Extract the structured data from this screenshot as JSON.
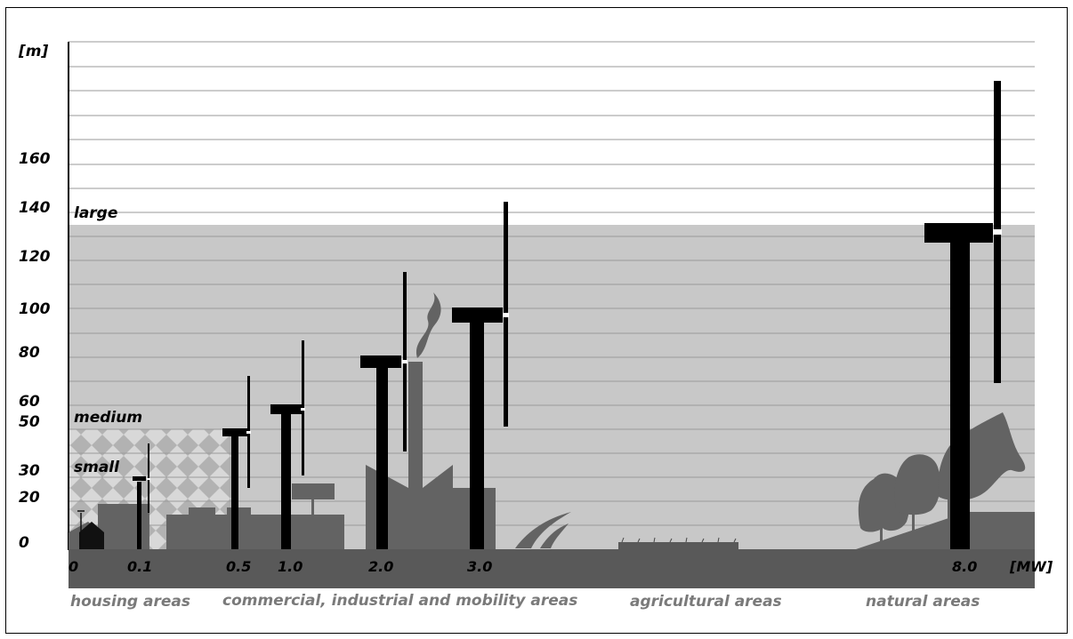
{
  "y_axis": {
    "unit": "[m]",
    "ticks": [
      "0",
      "20",
      "30",
      "50",
      "60",
      "80",
      "100",
      "120",
      "140",
      "160"
    ]
  },
  "x_axis": {
    "unit": "[MW]",
    "ticks": [
      "0",
      "0.1",
      "0.5",
      "1.0",
      "2.0",
      "3.0",
      "8.0"
    ]
  },
  "size_classes": [
    "small",
    "medium",
    "large"
  ],
  "areas": [
    "housing areas",
    "commercial, industrial and mobility areas",
    "agricultural areas",
    "natural areas"
  ],
  "colors": {
    "large_zone": "#c8c8c8",
    "small_zone": "#a6a6a6",
    "ground": "#595959",
    "buildings": "#636363",
    "turbine": "#000000",
    "gridline": "#9a9a9a"
  }
}
